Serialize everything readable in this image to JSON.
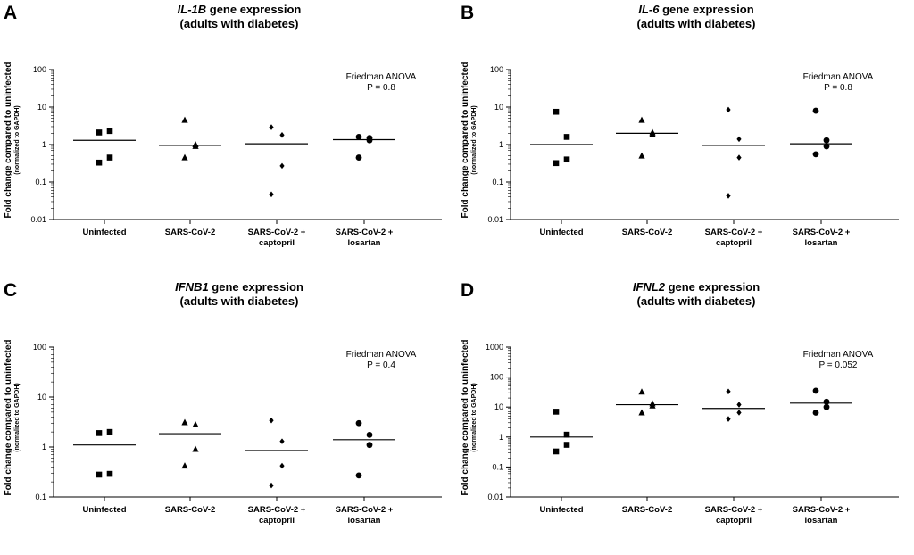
{
  "chart_data": [
    {
      "type": "scatter",
      "panel_label": "A",
      "title_gene": "IL-1B",
      "title_rest": " gene expression",
      "subtitle": "(adults with diabetes)",
      "ylabel": "Fold change compared to uninfected",
      "ylabel_sub": "(normalized to GAPDH)",
      "yscale": "log",
      "ylim": [
        0.01,
        100
      ],
      "yticks": [
        "0.01",
        "0.1",
        "1",
        "10",
        "100"
      ],
      "categories": [
        [
          "Uninfected"
        ],
        [
          "SARS-CoV-2"
        ],
        [
          "SARS-CoV-2 +",
          "captopril"
        ],
        [
          "SARS-CoV-2 +",
          "losartan"
        ]
      ],
      "markers": [
        "square",
        "triangle",
        "diamond",
        "circle"
      ],
      "annotation": [
        "Friedman ANOVA",
        "P = 0.8"
      ],
      "series": [
        {
          "name": "Uninfected",
          "values": [
            2.1,
            2.3,
            0.45,
            0.33
          ],
          "mean": 1.3
        },
        {
          "name": "SARS-CoV-2",
          "values": [
            4.5,
            1.0,
            0.9,
            0.45
          ],
          "mean": 0.95
        },
        {
          "name": "SARS-CoV-2 + captopril",
          "values": [
            2.9,
            1.8,
            0.27,
            0.047
          ],
          "mean": 1.05
        },
        {
          "name": "SARS-CoV-2 + losartan",
          "values": [
            1.6,
            1.5,
            1.3,
            0.45
          ],
          "mean": 1.35
        }
      ]
    },
    {
      "type": "scatter",
      "panel_label": "B",
      "title_gene": "IL-6",
      "title_rest": " gene expression",
      "subtitle": "(adults with diabetes)",
      "ylabel": "Fold change compared to uninfected",
      "ylabel_sub": "(normalized to GAPDH)",
      "yscale": "log",
      "ylim": [
        0.01,
        100
      ],
      "yticks": [
        "0.01",
        "0.1",
        "1",
        "10",
        "100"
      ],
      "categories": [
        [
          "Uninfected"
        ],
        [
          "SARS-CoV-2"
        ],
        [
          "SARS-CoV-2 +",
          "captopril"
        ],
        [
          "SARS-CoV-2 +",
          "losartan"
        ]
      ],
      "markers": [
        "square",
        "triangle",
        "diamond",
        "circle"
      ],
      "annotation": [
        "Friedman ANOVA",
        "P = 0.8"
      ],
      "series": [
        {
          "name": "Uninfected",
          "values": [
            7.5,
            1.6,
            0.4,
            0.32
          ],
          "mean": 1.0
        },
        {
          "name": "SARS-CoV-2",
          "values": [
            4.5,
            2.1,
            1.9,
            0.5
          ],
          "mean": 2.0
        },
        {
          "name": "SARS-CoV-2 + captopril",
          "values": [
            8.5,
            1.4,
            0.45,
            0.043
          ],
          "mean": 0.95
        },
        {
          "name": "SARS-CoV-2 + losartan",
          "values": [
            8.0,
            1.3,
            0.9,
            0.55
          ],
          "mean": 1.05
        }
      ]
    },
    {
      "type": "scatter",
      "panel_label": "C",
      "title_gene": "IFNB1",
      "title_rest": " gene expression",
      "subtitle": "(adults with diabetes)",
      "ylabel": "Fold change compared to uninfected",
      "ylabel_sub": "(normalized to GAPDH)",
      "yscale": "log",
      "ylim": [
        0.1,
        100
      ],
      "yticks": [
        "0.1",
        "1",
        "10",
        "100"
      ],
      "categories": [
        [
          "Uninfected"
        ],
        [
          "SARS-CoV-2"
        ],
        [
          "SARS-CoV-2 +",
          "captopril"
        ],
        [
          "SARS-CoV-2 +",
          "losartan"
        ]
      ],
      "markers": [
        "square",
        "triangle",
        "diamond",
        "circle"
      ],
      "annotation": [
        "Friedman ANOVA",
        "P = 0.4"
      ],
      "series": [
        {
          "name": "Uninfected",
          "values": [
            1.9,
            2.0,
            0.29,
            0.28
          ],
          "mean": 1.1
        },
        {
          "name": "SARS-CoV-2",
          "values": [
            3.1,
            2.8,
            0.9,
            0.42
          ],
          "mean": 1.85
        },
        {
          "name": "SARS-CoV-2 + captopril",
          "values": [
            3.4,
            1.3,
            0.42,
            0.17
          ],
          "mean": 0.85
        },
        {
          "name": "SARS-CoV-2 + losartan",
          "values": [
            3.0,
            1.75,
            1.1,
            0.27
          ],
          "mean": 1.4
        }
      ]
    },
    {
      "type": "scatter",
      "panel_label": "D",
      "title_gene": "IFNL2",
      "title_rest": " gene expression",
      "subtitle": "(adults with diabetes)",
      "ylabel": "Fold change compared to uninfected",
      "ylabel_sub": "(normalized to GAPDH)",
      "yscale": "log",
      "ylim": [
        0.01,
        1000
      ],
      "yticks": [
        "0.01",
        "0.1",
        "1",
        "10",
        "100",
        "1000"
      ],
      "categories": [
        [
          "Uninfected"
        ],
        [
          "SARS-CoV-2"
        ],
        [
          "SARS-CoV-2 +",
          "captopril"
        ],
        [
          "SARS-CoV-2 +",
          "losartan"
        ]
      ],
      "markers": [
        "square",
        "triangle",
        "diamond",
        "circle"
      ],
      "annotation": [
        "Friedman ANOVA",
        "P = 0.052"
      ],
      "series": [
        {
          "name": "Uninfected",
          "values": [
            7.0,
            1.2,
            0.55,
            0.33
          ],
          "mean": 1.0
        },
        {
          "name": "SARS-CoV-2",
          "values": [
            32,
            13,
            11,
            6.5
          ],
          "mean": 12.0
        },
        {
          "name": "SARS-CoV-2 + captopril",
          "values": [
            33,
            12,
            6.5,
            4.0
          ],
          "mean": 9.0
        },
        {
          "name": "SARS-CoV-2 + losartan",
          "values": [
            35,
            15,
            10,
            6.5
          ],
          "mean": 13.5
        }
      ]
    }
  ]
}
